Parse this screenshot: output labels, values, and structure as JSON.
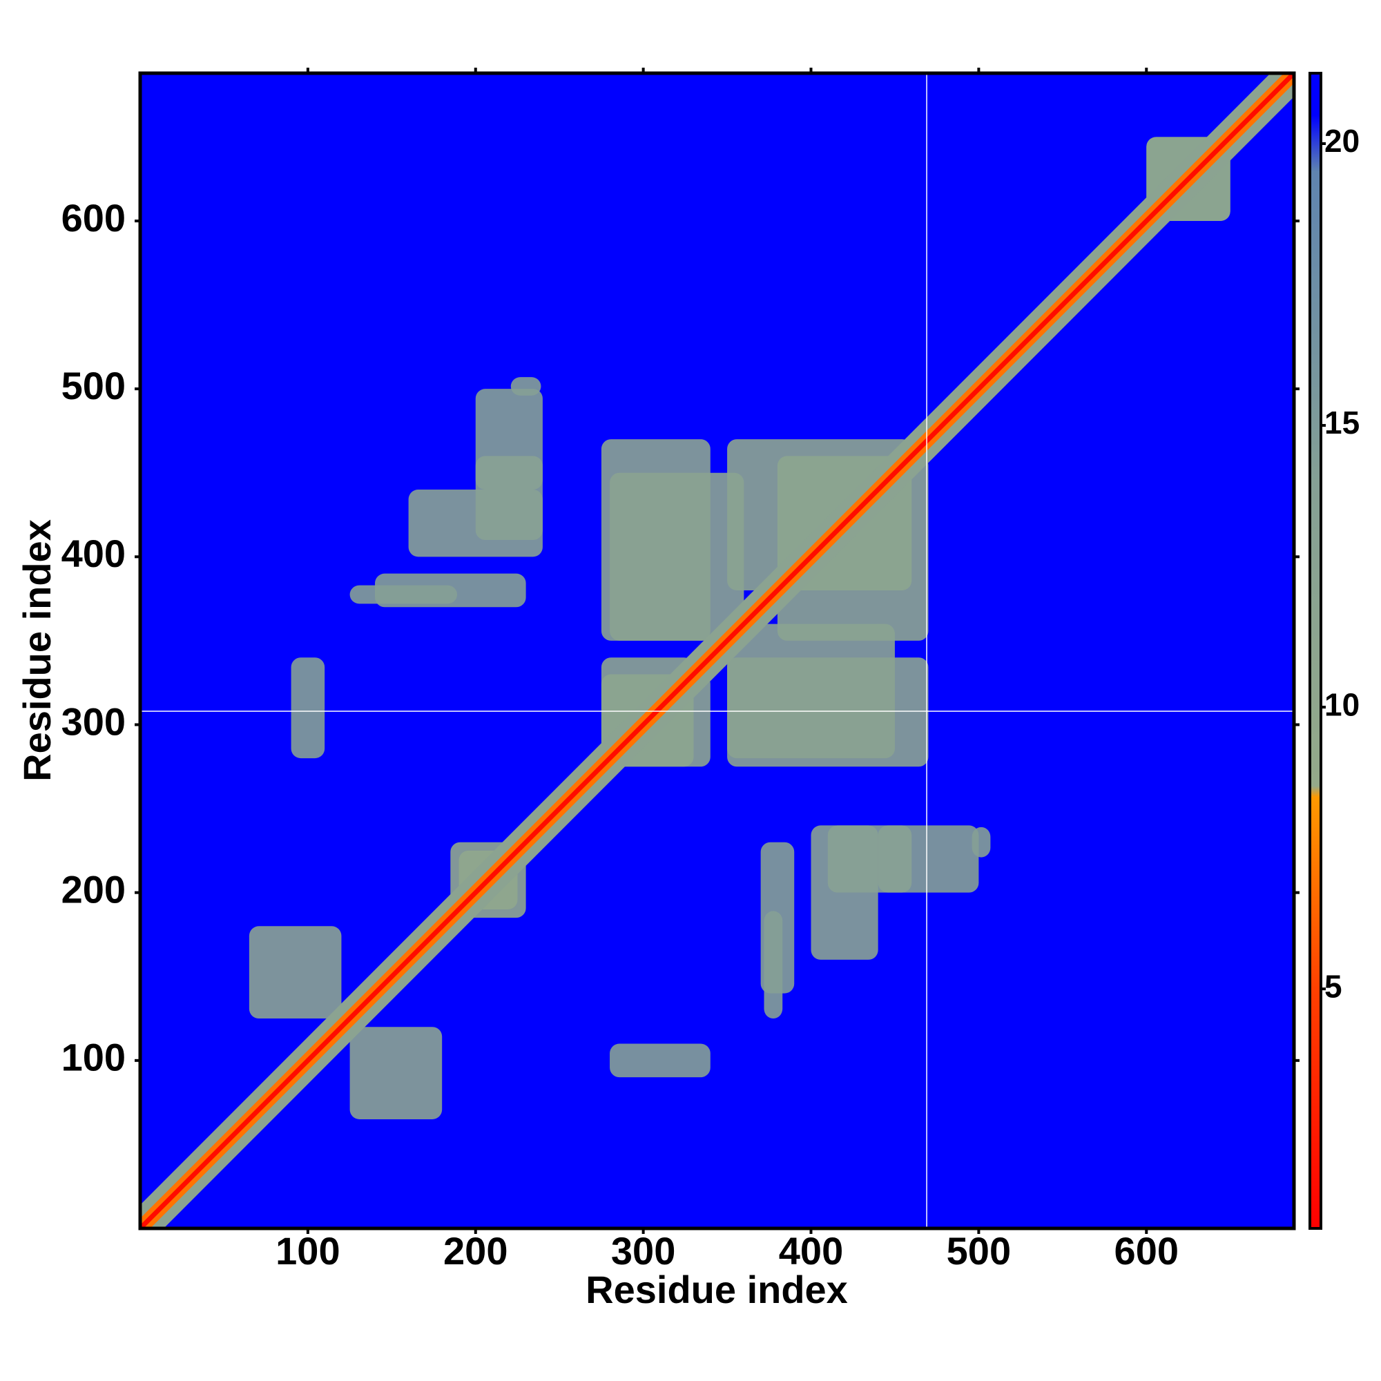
{
  "chart_data": {
    "type": "heatmap",
    "x_label": "Residue index",
    "y_label": "Residue index",
    "xlim": [
      0,
      688
    ],
    "ylim": [
      0,
      688
    ],
    "xticks": [
      100,
      200,
      300,
      400,
      500,
      600
    ],
    "yticks": [
      100,
      200,
      300,
      400,
      500,
      600
    ],
    "clim": [
      0.75,
      21.25
    ],
    "cticks": [
      5,
      10,
      15,
      20
    ],
    "colorscale": [
      [
        0.75,
        "#ff0000"
      ],
      [
        5,
        "#ff4000"
      ],
      [
        8.4,
        "#ff9900"
      ],
      [
        8.6,
        "#94a98a"
      ],
      [
        14,
        "#85a095"
      ],
      [
        19.5,
        "#5f84b0"
      ],
      [
        20.5,
        "#0000ff"
      ],
      [
        21.25,
        "#0000ff"
      ]
    ],
    "background_value": 21,
    "symmetric": true,
    "diagonal_band": [
      {
        "offset": 14,
        "value": 12
      },
      {
        "offset": 6,
        "value": 7
      },
      {
        "offset": 2,
        "value": 1.5
      }
    ],
    "patches": [
      {
        "x": [
          65,
          120
        ],
        "y": [
          125,
          180
        ],
        "value": 12
      },
      {
        "x": [
          185,
          225
        ],
        "y": [
          190,
          230
        ],
        "value": 10
      },
      {
        "x": [
          275,
          330
        ],
        "y": [
          275,
          340
        ],
        "value": 11
      },
      {
        "x": [
          275,
          340
        ],
        "y": [
          350,
          470
        ],
        "value": 12
      },
      {
        "x": [
          350,
          460
        ],
        "y": [
          380,
          470
        ],
        "value": 11
      },
      {
        "x": [
          350,
          450
        ],
        "y": [
          280,
          360
        ],
        "value": 12
      },
      {
        "x": [
          160,
          240
        ],
        "y": [
          400,
          440
        ],
        "value": 13
      },
      {
        "x": [
          200,
          240
        ],
        "y": [
          440,
          500
        ],
        "value": 14
      },
      {
        "x": [
          600,
          650
        ],
        "y": [
          600,
          650
        ],
        "value": 11
      },
      {
        "x": [
          140,
          230
        ],
        "y": [
          370,
          390
        ],
        "value": 14
      },
      {
        "x": [
          90,
          110
        ],
        "y": [
          280,
          340
        ],
        "value": 14
      },
      {
        "x": [
          410,
          460
        ],
        "y": [
          200,
          240
        ],
        "value": 13
      },
      {
        "x": [
          372,
          383
        ],
        "y": [
          125,
          189
        ],
        "value": 14
      },
      {
        "x": [
          496,
          507
        ],
        "y": [
          221,
          239
        ],
        "value": 14
      }
    ],
    "guide_lines": {
      "x": 469,
      "y": 308,
      "color": "#ffffff"
    }
  }
}
